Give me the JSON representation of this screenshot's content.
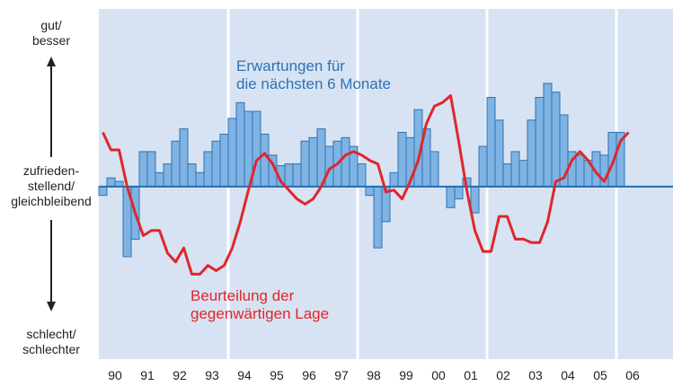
{
  "chart_data": {
    "type": "bar-line",
    "y_labels": {
      "top": "gut/\nbesser",
      "middle": "zufrieden-\nstellend/\ngleichbleibend",
      "bottom": "schlecht/\nschlechter"
    },
    "x": [
      1990.125,
      1990.375,
      1990.625,
      1990.875,
      1991.125,
      1991.375,
      1991.625,
      1991.875,
      1992.125,
      1992.375,
      1992.625,
      1992.875,
      1993.125,
      1993.375,
      1993.625,
      1993.875,
      1994.125,
      1994.375,
      1994.625,
      1994.875,
      1995.125,
      1995.375,
      1995.625,
      1995.875,
      1996.125,
      1996.375,
      1996.625,
      1996.875,
      1997.125,
      1997.375,
      1997.625,
      1997.875,
      1998.125,
      1998.375,
      1998.625,
      1998.875,
      1999.125,
      1999.375,
      1999.625,
      1999.875,
      2000.125,
      2000.375,
      2000.625,
      2000.875,
      2001.125,
      2001.375,
      2001.625,
      2001.875,
      2002.125,
      2002.375,
      2002.625,
      2002.875,
      2003.125,
      2003.375,
      2003.625,
      2003.875,
      2004.125,
      2004.375,
      2004.625,
      2004.875,
      2005.125,
      2005.375,
      2005.625,
      2005.875,
      2006.125,
      2006.375
    ],
    "series": [
      {
        "name": "Erwartungen für\ndie nächsten 6 Monate",
        "type": "bar",
        "color": "#7fb3e3",
        "stroke": "#2f72b4",
        "values": [
          -5,
          5,
          3,
          -40,
          -30,
          20,
          20,
          8,
          13,
          26,
          33,
          13,
          8,
          20,
          26,
          30,
          39,
          48,
          43,
          43,
          30,
          18,
          12,
          13,
          13,
          26,
          28,
          33,
          23,
          26,
          28,
          23,
          13,
          -5,
          -35,
          -20,
          8,
          31,
          28,
          44,
          33,
          20,
          0,
          -12,
          -7,
          5,
          -15,
          23,
          51,
          38,
          13,
          20,
          15,
          38,
          51,
          59,
          54,
          41,
          20,
          18,
          15,
          20,
          18,
          31,
          31,
          null
        ]
      },
      {
        "name": "Beurteilung der\ngegenwärtigen Lage",
        "type": "line",
        "color": "#e0262b",
        "values": [
          31,
          21,
          21,
          0,
          -15,
          -28,
          -25,
          -25,
          -38,
          -43,
          -35,
          -50,
          -50,
          -45,
          -48,
          -45,
          -35,
          -20,
          -2,
          15,
          19,
          13,
          3,
          -2,
          -7,
          -10,
          -7,
          0,
          10,
          13,
          18,
          20,
          18,
          15,
          13,
          -3,
          -2,
          -7,
          3,
          15,
          36,
          46,
          48,
          52,
          26,
          -2,
          -25,
          -37,
          -37,
          -17,
          -17,
          -30,
          -30,
          -32,
          -32,
          -20,
          3,
          5,
          15,
          20,
          15,
          8,
          3,
          13,
          26,
          31
        ]
      }
    ],
    "xlim": [
      1990,
      2007.75
    ],
    "ylim": [
      -98.5,
      101.5
    ],
    "xticks": [
      {
        "value": 1990.5,
        "label": "90"
      },
      {
        "value": 1991.5,
        "label": "91"
      },
      {
        "value": 1992.5,
        "label": "92"
      },
      {
        "value": 1993.5,
        "label": "93"
      },
      {
        "value": 1994.5,
        "label": "94"
      },
      {
        "value": 1995.5,
        "label": "95"
      },
      {
        "value": 1996.5,
        "label": "96"
      },
      {
        "value": 1997.5,
        "label": "97"
      },
      {
        "value": 1998.5,
        "label": "98"
      },
      {
        "value": 1999.5,
        "label": "99"
      },
      {
        "value": 2000.5,
        "label": "00"
      },
      {
        "value": 2001.5,
        "label": "01"
      },
      {
        "value": 2002.5,
        "label": "02"
      },
      {
        "value": 2003.5,
        "label": "03"
      },
      {
        "value": 2004.5,
        "label": "04"
      },
      {
        "value": 2005.5,
        "label": "05"
      },
      {
        "value": 2006.5,
        "label": "06"
      }
    ],
    "separators": [
      1994,
      1998,
      2002,
      2006
    ],
    "zero_line_color": "#1f6db3"
  }
}
